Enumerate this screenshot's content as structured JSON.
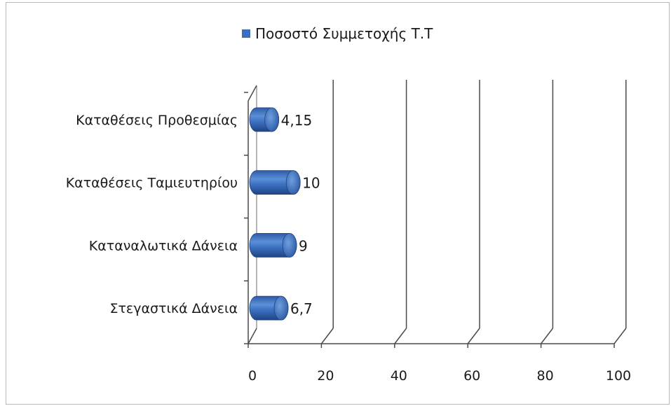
{
  "chart_data": {
    "type": "bar",
    "orientation": "horizontal",
    "three_d": true,
    "categories": [
      "Στεγαστικά Δάνεια",
      "Καταναλωτικά Δάνεια",
      "Καταθέσεις Ταμιευτηρίου",
      "Καταθέσεις Προθεσμίας"
    ],
    "series": [
      {
        "name": "Ποσοστό Συμμετοχής Τ.Τ",
        "values": [
          6.7,
          9,
          10,
          4.15
        ],
        "data_labels": [
          "6,7",
          "9",
          "10",
          "4,15"
        ],
        "color": "#3a6fbf"
      }
    ],
    "xlim": [
      0,
      100
    ],
    "x_ticks": [
      "0",
      "20",
      "40",
      "60",
      "80",
      "100"
    ],
    "legend_position": "top",
    "grid": true
  }
}
